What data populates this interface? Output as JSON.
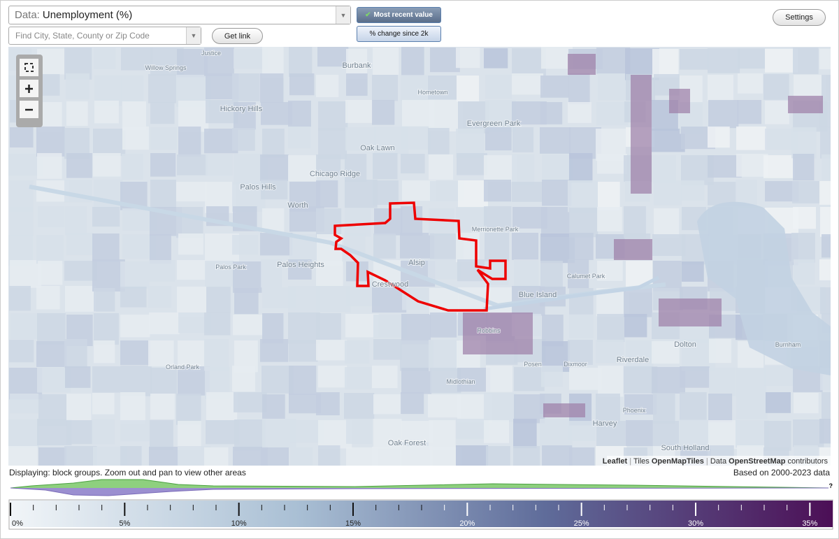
{
  "controls": {
    "data_label": "Data:",
    "data_value": "Unemployment (%)",
    "search_placeholder": "Find City, State, County or Zip Code",
    "get_link": "Get link",
    "most_recent": "Most recent value",
    "pct_change": "% change since 2k",
    "settings": "Settings"
  },
  "map": {
    "places": [
      "Justice",
      "Willow Springs",
      "Burbank",
      "Hometown",
      "Hickory Hills",
      "Evergreen Park",
      "Oak Lawn",
      "Chicago Ridge",
      "Palos Hills",
      "Worth",
      "Merrionette Park",
      "Alsip",
      "Palos Park",
      "Palos Heights",
      "Crestwood",
      "Blue Island",
      "Calumet Park",
      "Robbins",
      "Dolton",
      "Burnham",
      "Riverdale",
      "Posen",
      "Dixmoor",
      "Midlothian",
      "Orland Park",
      "Harvey",
      "Phoenix",
      "Oak Forest",
      "South Holland"
    ],
    "attribution": {
      "leaflet": "Leaflet",
      "tiles_label": "Tiles",
      "tiles": "OpenMapTiles",
      "data_label": "Data",
      "data": "OpenStreetMap",
      "contributors": "contributors"
    }
  },
  "status": {
    "displaying": "Displaying: block groups. Zoom out and pan to view other areas",
    "based_on": "Based on 2000-2023 data",
    "histogram_note": "?"
  },
  "legend": {
    "range": [
      0,
      36
    ],
    "ticks": [
      {
        "value": 0,
        "label": "0%"
      },
      {
        "value": 5,
        "label": "5%"
      },
      {
        "value": 10,
        "label": "10%"
      },
      {
        "value": 15,
        "label": "15%"
      },
      {
        "value": 20,
        "label": "20%"
      },
      {
        "value": 25,
        "label": "25%"
      },
      {
        "value": 30,
        "label": "30%"
      },
      {
        "value": 35,
        "label": "35%"
      }
    ]
  }
}
